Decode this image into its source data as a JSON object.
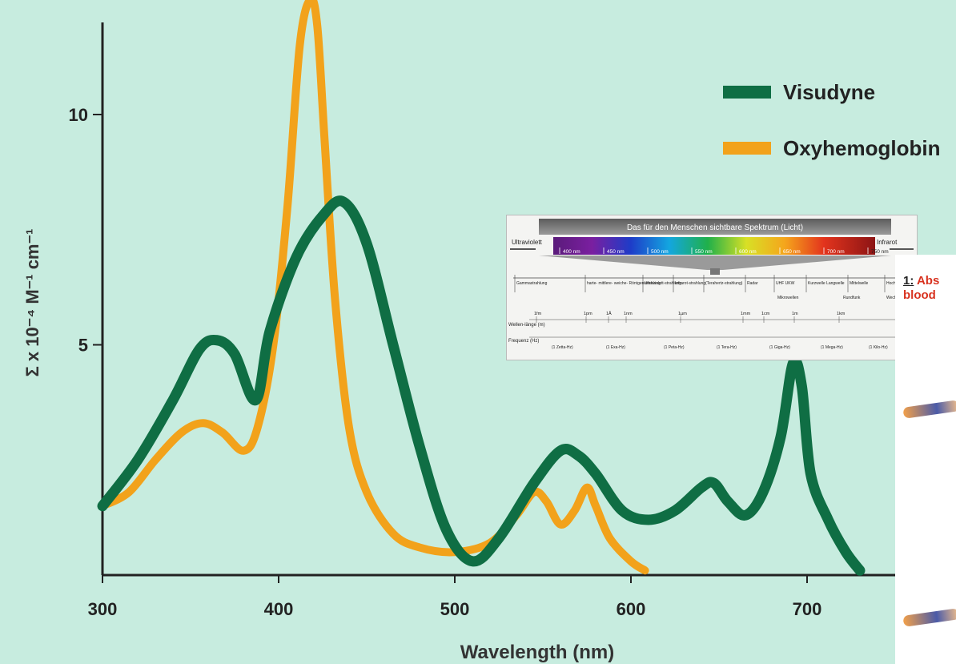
{
  "chart_data": {
    "type": "line",
    "xlabel": "Wavelength (nm)",
    "ylabel": "Σ x 10⁻⁴ M⁻¹ cm⁻¹",
    "xlim": [
      300,
      750
    ],
    "ylim": [
      0,
      12
    ],
    "xticks": [
      "300",
      "400",
      "500",
      "600",
      "700"
    ],
    "yticks": [
      "5",
      "10"
    ],
    "legend_position": "top-right",
    "series": [
      {
        "name": "Visudyne",
        "color": "#0f6e44",
        "x": [
          300,
          320,
          340,
          355,
          365,
          375,
          387,
          395,
          410,
          425,
          437,
          450,
          465,
          480,
          495,
          510,
          525,
          545,
          560,
          570,
          580,
          595,
          610,
          625,
          640,
          647,
          655,
          665,
          675,
          685,
          692,
          697,
          702,
          712,
          722,
          730
        ],
        "y": [
          1.5,
          2.5,
          3.8,
          4.9,
          5.1,
          4.8,
          3.8,
          5.3,
          6.9,
          7.8,
          8.1,
          7.2,
          5.0,
          2.8,
          1.0,
          0.3,
          0.8,
          2.0,
          2.7,
          2.6,
          2.2,
          1.4,
          1.2,
          1.4,
          1.9,
          2.0,
          1.6,
          1.3,
          1.8,
          3.0,
          4.6,
          4.1,
          2.2,
          1.2,
          0.5,
          0.1
        ]
      },
      {
        "name": "Oxyhemoglobin",
        "color": "#f2a21b",
        "x": [
          300,
          315,
          330,
          345,
          357,
          368,
          380,
          388,
          397,
          405,
          412,
          418,
          422,
          426,
          432,
          440,
          450,
          465,
          480,
          500,
          520,
          535,
          545,
          552,
          560,
          568,
          575,
          580,
          588,
          600,
          608
        ],
        "y": [
          1.5,
          1.8,
          2.5,
          3.1,
          3.3,
          3.1,
          2.7,
          3.2,
          5.0,
          8.0,
          11.5,
          12.5,
          11.9,
          9.5,
          6.0,
          3.2,
          1.8,
          0.9,
          0.6,
          0.5,
          0.7,
          1.3,
          1.8,
          1.6,
          1.1,
          1.4,
          1.9,
          1.5,
          0.8,
          0.3,
          0.1
        ]
      }
    ]
  },
  "inset": {
    "title": "Das für den Menschen sichtbare Spektrum (Licht)",
    "left_label": "Ultraviolett",
    "right_label": "Infrarot",
    "nm_marks": [
      "400 nm",
      "450 nm",
      "500 nm",
      "550 nm",
      "600 nm",
      "650 nm",
      "700 nm",
      "750 nm"
    ],
    "bands": [
      "Gammastrahlung",
      "harte- mittlere- weiche- Röntgenstrahlung",
      "Ultraviolett-strahlung",
      "Infrarot-strahlung",
      "(Terahertz-strahlung)",
      "Radar",
      "UHF UKW",
      "Kurzwelle Langwelle",
      "Mittelwelle",
      "Hoch-Mittel frequenz"
    ],
    "sub_bands": [
      "Mikrowellen",
      "Rundfunk",
      "Wechselstrom"
    ],
    "wavelength_label": "Wellen-länge (m)",
    "frequency_label": "Frequenz (Hz)",
    "length_marks": [
      "1fm",
      "1pm",
      "1Å",
      "1nm",
      "1µm",
      "1mm",
      "1cm",
      "1m",
      "1km"
    ],
    "freq_marks": [
      "(1 Zetta-Hz)",
      "(1 Exa-Hz)",
      "(1 Peta-Hz)",
      "(1 Tera-Hz)",
      "(1 Giga-Hz)",
      "(1 Mega-Hz)",
      "(1 Kilo-Hz)"
    ]
  },
  "side_panel": {
    "number": "1:",
    "line1": "Abs",
    "line2": "blood"
  }
}
